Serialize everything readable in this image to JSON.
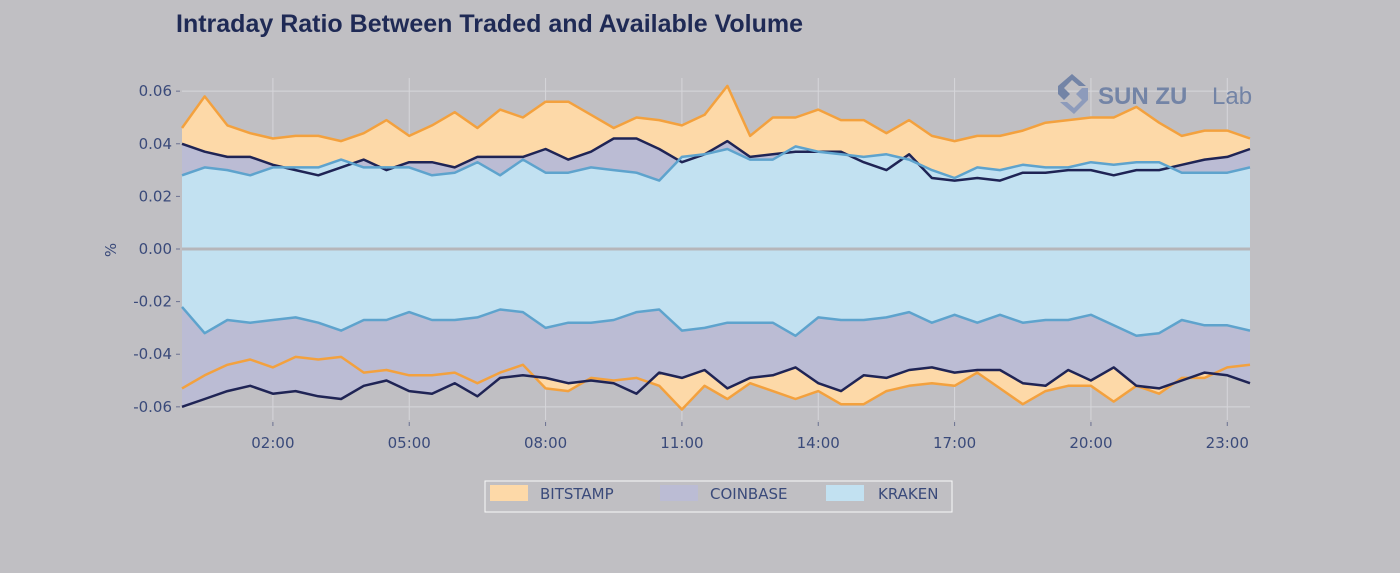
{
  "title": "Intraday Ratio Between Traded and Available Volume",
  "logo": {
    "brand": "SUN ZU",
    "suffix": "Lab"
  },
  "colors": {
    "background": "#c0bfc3",
    "bitstamp_fill": "#fdd9a8",
    "bitstamp_line": "#f3a13e",
    "coinbase_fill": "#bbbcd4",
    "coinbase_line": "#1f2455",
    "kraken_fill": "#c2e1f1",
    "kraken_line": "#5ea3cd",
    "zero_line": "#b6b6ba",
    "grid": "#d6d6da"
  },
  "chart_data": {
    "type": "area",
    "title": "Intraday Ratio Between Traded and Available Volume",
    "xlabel": "",
    "ylabel": "%",
    "xlim": [
      0,
      23.5
    ],
    "ylim": [
      -0.065,
      0.065
    ],
    "xticks": [
      2,
      5,
      8,
      11,
      14,
      17,
      20,
      23
    ],
    "xtick_labels": [
      "02:00",
      "05:00",
      "08:00",
      "11:00",
      "14:00",
      "17:00",
      "20:00",
      "23:00"
    ],
    "yticks": [
      0.06,
      0.04,
      0.02,
      0.0,
      -0.02,
      -0.04,
      -0.06
    ],
    "ytick_labels": [
      "0.06",
      "0.04",
      "0.02",
      "0.00",
      "-0.02",
      "-0.04",
      "-0.06"
    ],
    "grid": true,
    "legend_position": "bottom-center",
    "x": [
      0,
      0.5,
      1,
      1.5,
      2,
      2.5,
      3,
      3.5,
      4,
      4.5,
      5,
      5.5,
      6,
      6.5,
      7,
      7.5,
      8,
      8.5,
      9,
      9.5,
      10,
      10.5,
      11,
      11.5,
      12,
      12.5,
      13,
      13.5,
      14,
      14.5,
      15,
      15.5,
      16,
      16.5,
      17,
      17.5,
      18,
      18.5,
      19,
      19.5,
      20,
      20.5,
      21,
      21.5,
      22,
      22.5,
      23,
      23.5
    ],
    "series": [
      {
        "name": "BITSTAMP",
        "upper": [
          0.046,
          0.058,
          0.047,
          0.044,
          0.042,
          0.043,
          0.043,
          0.041,
          0.044,
          0.049,
          0.043,
          0.047,
          0.052,
          0.046,
          0.053,
          0.05,
          0.056,
          0.056,
          0.051,
          0.046,
          0.05,
          0.049,
          0.047,
          0.051,
          0.062,
          0.043,
          0.05,
          0.05,
          0.053,
          0.049,
          0.049,
          0.044,
          0.049,
          0.043,
          0.041,
          0.043,
          0.043,
          0.045,
          0.048,
          0.049,
          0.05,
          0.05,
          0.054,
          0.048,
          0.043,
          0.045,
          0.045,
          0.042
        ],
        "lower": [
          -0.053,
          -0.048,
          -0.044,
          -0.042,
          -0.045,
          -0.041,
          -0.042,
          -0.041,
          -0.047,
          -0.046,
          -0.048,
          -0.048,
          -0.047,
          -0.051,
          -0.047,
          -0.044,
          -0.053,
          -0.054,
          -0.049,
          -0.05,
          -0.049,
          -0.052,
          -0.061,
          -0.052,
          -0.057,
          -0.051,
          -0.054,
          -0.057,
          -0.054,
          -0.059,
          -0.059,
          -0.054,
          -0.052,
          -0.051,
          -0.052,
          -0.047,
          -0.053,
          -0.059,
          -0.054,
          -0.052,
          -0.052,
          -0.058,
          -0.052,
          -0.055,
          -0.049,
          -0.049,
          -0.045,
          -0.044
        ]
      },
      {
        "name": "COINBASE",
        "upper": [
          0.04,
          0.037,
          0.035,
          0.035,
          0.032,
          0.03,
          0.028,
          0.031,
          0.034,
          0.03,
          0.033,
          0.033,
          0.031,
          0.035,
          0.035,
          0.035,
          0.038,
          0.034,
          0.037,
          0.042,
          0.042,
          0.038,
          0.033,
          0.036,
          0.041,
          0.035,
          0.036,
          0.037,
          0.037,
          0.037,
          0.033,
          0.03,
          0.036,
          0.027,
          0.026,
          0.027,
          0.026,
          0.029,
          0.029,
          0.03,
          0.03,
          0.028,
          0.03,
          0.03,
          0.032,
          0.034,
          0.035,
          0.038
        ],
        "lower": [
          -0.06,
          -0.057,
          -0.054,
          -0.052,
          -0.055,
          -0.054,
          -0.056,
          -0.057,
          -0.052,
          -0.05,
          -0.054,
          -0.055,
          -0.051,
          -0.056,
          -0.049,
          -0.048,
          -0.049,
          -0.051,
          -0.05,
          -0.051,
          -0.055,
          -0.047,
          -0.049,
          -0.046,
          -0.053,
          -0.049,
          -0.048,
          -0.045,
          -0.051,
          -0.054,
          -0.048,
          -0.049,
          -0.046,
          -0.045,
          -0.047,
          -0.046,
          -0.046,
          -0.051,
          -0.052,
          -0.046,
          -0.05,
          -0.045,
          -0.052,
          -0.053,
          -0.05,
          -0.047,
          -0.048,
          -0.051
        ]
      },
      {
        "name": "KRAKEN",
        "upper": [
          0.028,
          0.031,
          0.03,
          0.028,
          0.031,
          0.031,
          0.031,
          0.034,
          0.031,
          0.031,
          0.031,
          0.028,
          0.029,
          0.033,
          0.028,
          0.034,
          0.029,
          0.029,
          0.031,
          0.03,
          0.029,
          0.026,
          0.035,
          0.036,
          0.038,
          0.034,
          0.034,
          0.039,
          0.037,
          0.036,
          0.035,
          0.036,
          0.034,
          0.03,
          0.027,
          0.031,
          0.03,
          0.032,
          0.031,
          0.031,
          0.033,
          0.032,
          0.033,
          0.033,
          0.029,
          0.029,
          0.029,
          0.031
        ],
        "lower": [
          -0.022,
          -0.032,
          -0.027,
          -0.028,
          -0.027,
          -0.026,
          -0.028,
          -0.031,
          -0.027,
          -0.027,
          -0.024,
          -0.027,
          -0.027,
          -0.026,
          -0.023,
          -0.024,
          -0.03,
          -0.028,
          -0.028,
          -0.027,
          -0.024,
          -0.023,
          -0.031,
          -0.03,
          -0.028,
          -0.028,
          -0.028,
          -0.033,
          -0.026,
          -0.027,
          -0.027,
          -0.026,
          -0.024,
          -0.028,
          -0.025,
          -0.028,
          -0.025,
          -0.028,
          -0.027,
          -0.027,
          -0.025,
          -0.029,
          -0.033,
          -0.032,
          -0.027,
          -0.029,
          -0.029,
          -0.031
        ]
      }
    ]
  }
}
